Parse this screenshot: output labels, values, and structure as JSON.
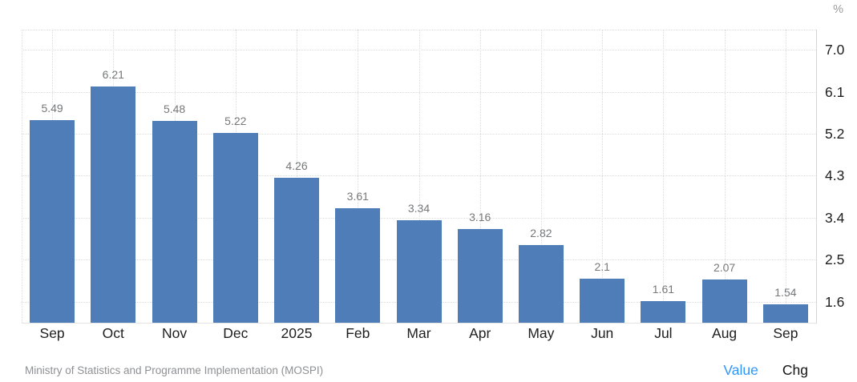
{
  "chart_data": {
    "type": "bar",
    "title": "",
    "xlabel": "",
    "ylabel": "%",
    "categories": [
      "Sep",
      "Oct",
      "Nov",
      "Dec",
      "2025",
      "Feb",
      "Mar",
      "Apr",
      "May",
      "Jun",
      "Jul",
      "Aug",
      "Sep"
    ],
    "values": [
      5.49,
      6.21,
      5.48,
      5.22,
      4.26,
      3.61,
      3.34,
      3.16,
      2.82,
      2.1,
      1.61,
      2.07,
      1.54
    ],
    "value_labels": [
      "5.49",
      "6.21",
      "5.48",
      "5.22",
      "4.26",
      "3.61",
      "3.34",
      "3.16",
      "2.82",
      "2.1",
      "1.61",
      "2.07",
      "1.54"
    ],
    "ylim": [
      1.15,
      7.43
    ],
    "yticks": [
      7.0,
      6.1,
      5.2,
      4.3,
      3.4,
      2.5,
      1.6
    ],
    "ytick_labels": [
      "7.0",
      "6.1",
      "5.2",
      "4.3",
      "3.4",
      "2.5",
      "1.6"
    ],
    "grid": true,
    "legend_position": "bottom-right"
  },
  "colors": {
    "bar": "#4e7db8",
    "value_label": "#76787a",
    "axis_label": "#1e1e1e",
    "unit": "#9a9a9a",
    "source": "#8e9093",
    "legend_value": "#2f96fa",
    "legend_chg": "#141414",
    "grid": "#dcdcdc"
  },
  "footer": {
    "source": "Ministry of Statistics and Programme Implementation (MOSPI)",
    "legend": {
      "value_label": "Value",
      "chg_label": "Chg"
    }
  }
}
